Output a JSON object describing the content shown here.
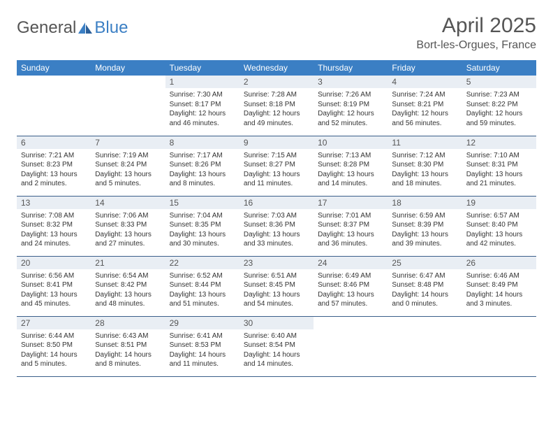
{
  "logo": {
    "text_general": "General",
    "text_blue": "Blue"
  },
  "header": {
    "month": "April 2025",
    "location": "Bort-les-Orgues, France"
  },
  "colors": {
    "header_bg": "#3b7fc4",
    "header_text": "#ffffff",
    "daynum_bg": "#e9eef4",
    "cell_border": "#3b5f8a",
    "title_text": "#555555",
    "body_text": "#333333"
  },
  "fonts": {
    "title_pt": 30,
    "location_pt": 16,
    "dayhead_pt": 12,
    "daynum_pt": 12,
    "body_pt": 10
  },
  "day_names": [
    "Sunday",
    "Monday",
    "Tuesday",
    "Wednesday",
    "Thursday",
    "Friday",
    "Saturday"
  ],
  "weeks": [
    [
      null,
      null,
      {
        "n": "1",
        "sr": "7:30 AM",
        "ss": "8:17 PM",
        "dl": "12 hours and 46 minutes."
      },
      {
        "n": "2",
        "sr": "7:28 AM",
        "ss": "8:18 PM",
        "dl": "12 hours and 49 minutes."
      },
      {
        "n": "3",
        "sr": "7:26 AM",
        "ss": "8:19 PM",
        "dl": "12 hours and 52 minutes."
      },
      {
        "n": "4",
        "sr": "7:24 AM",
        "ss": "8:21 PM",
        "dl": "12 hours and 56 minutes."
      },
      {
        "n": "5",
        "sr": "7:23 AM",
        "ss": "8:22 PM",
        "dl": "12 hours and 59 minutes."
      }
    ],
    [
      {
        "n": "6",
        "sr": "7:21 AM",
        "ss": "8:23 PM",
        "dl": "13 hours and 2 minutes."
      },
      {
        "n": "7",
        "sr": "7:19 AM",
        "ss": "8:24 PM",
        "dl": "13 hours and 5 minutes."
      },
      {
        "n": "8",
        "sr": "7:17 AM",
        "ss": "8:26 PM",
        "dl": "13 hours and 8 minutes."
      },
      {
        "n": "9",
        "sr": "7:15 AM",
        "ss": "8:27 PM",
        "dl": "13 hours and 11 minutes."
      },
      {
        "n": "10",
        "sr": "7:13 AM",
        "ss": "8:28 PM",
        "dl": "13 hours and 14 minutes."
      },
      {
        "n": "11",
        "sr": "7:12 AM",
        "ss": "8:30 PM",
        "dl": "13 hours and 18 minutes."
      },
      {
        "n": "12",
        "sr": "7:10 AM",
        "ss": "8:31 PM",
        "dl": "13 hours and 21 minutes."
      }
    ],
    [
      {
        "n": "13",
        "sr": "7:08 AM",
        "ss": "8:32 PM",
        "dl": "13 hours and 24 minutes."
      },
      {
        "n": "14",
        "sr": "7:06 AM",
        "ss": "8:33 PM",
        "dl": "13 hours and 27 minutes."
      },
      {
        "n": "15",
        "sr": "7:04 AM",
        "ss": "8:35 PM",
        "dl": "13 hours and 30 minutes."
      },
      {
        "n": "16",
        "sr": "7:03 AM",
        "ss": "8:36 PM",
        "dl": "13 hours and 33 minutes."
      },
      {
        "n": "17",
        "sr": "7:01 AM",
        "ss": "8:37 PM",
        "dl": "13 hours and 36 minutes."
      },
      {
        "n": "18",
        "sr": "6:59 AM",
        "ss": "8:39 PM",
        "dl": "13 hours and 39 minutes."
      },
      {
        "n": "19",
        "sr": "6:57 AM",
        "ss": "8:40 PM",
        "dl": "13 hours and 42 minutes."
      }
    ],
    [
      {
        "n": "20",
        "sr": "6:56 AM",
        "ss": "8:41 PM",
        "dl": "13 hours and 45 minutes."
      },
      {
        "n": "21",
        "sr": "6:54 AM",
        "ss": "8:42 PM",
        "dl": "13 hours and 48 minutes."
      },
      {
        "n": "22",
        "sr": "6:52 AM",
        "ss": "8:44 PM",
        "dl": "13 hours and 51 minutes."
      },
      {
        "n": "23",
        "sr": "6:51 AM",
        "ss": "8:45 PM",
        "dl": "13 hours and 54 minutes."
      },
      {
        "n": "24",
        "sr": "6:49 AM",
        "ss": "8:46 PM",
        "dl": "13 hours and 57 minutes."
      },
      {
        "n": "25",
        "sr": "6:47 AM",
        "ss": "8:48 PM",
        "dl": "14 hours and 0 minutes."
      },
      {
        "n": "26",
        "sr": "6:46 AM",
        "ss": "8:49 PM",
        "dl": "14 hours and 3 minutes."
      }
    ],
    [
      {
        "n": "27",
        "sr": "6:44 AM",
        "ss": "8:50 PM",
        "dl": "14 hours and 5 minutes."
      },
      {
        "n": "28",
        "sr": "6:43 AM",
        "ss": "8:51 PM",
        "dl": "14 hours and 8 minutes."
      },
      {
        "n": "29",
        "sr": "6:41 AM",
        "ss": "8:53 PM",
        "dl": "14 hours and 11 minutes."
      },
      {
        "n": "30",
        "sr": "6:40 AM",
        "ss": "8:54 PM",
        "dl": "14 hours and 14 minutes."
      },
      null,
      null,
      null
    ]
  ],
  "labels": {
    "sunrise": "Sunrise:",
    "sunset": "Sunset:",
    "daylight": "Daylight:"
  }
}
